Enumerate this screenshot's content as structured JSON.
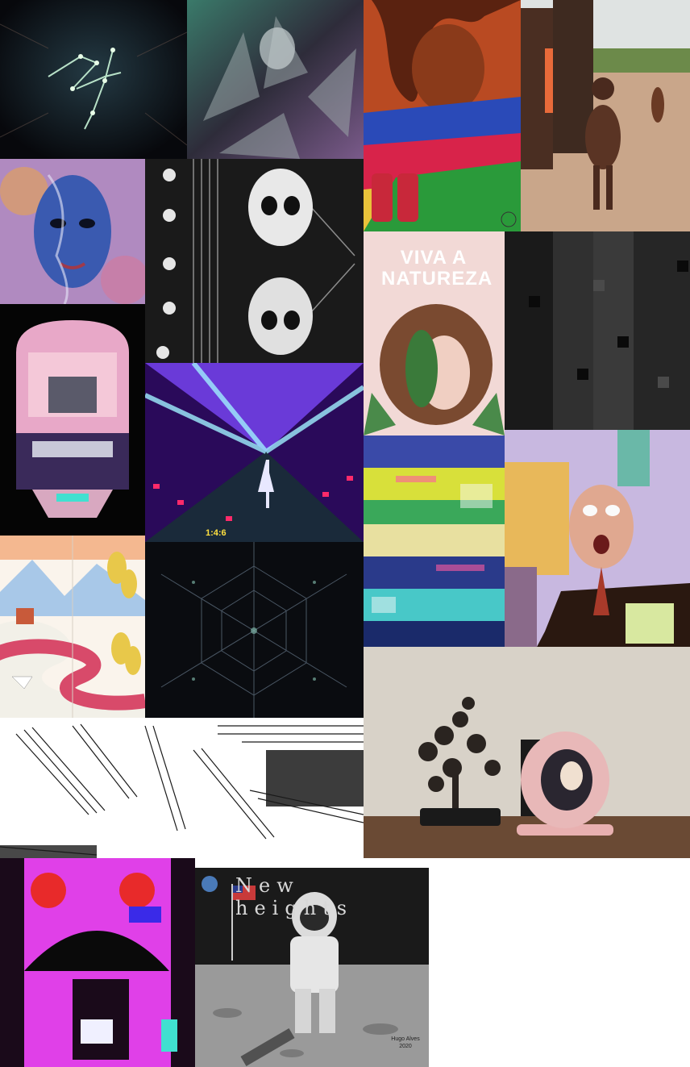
{
  "gallery": {
    "items": [
      {
        "id": "light-trails",
        "label": ""
      },
      {
        "id": "chrome-figure",
        "label": ""
      },
      {
        "id": "dreadlocks-painting",
        "label": ""
      },
      {
        "id": "children-photo",
        "label": ""
      },
      {
        "id": "psychedelic-face",
        "label": ""
      },
      {
        "id": "skull-mirror",
        "label": ""
      },
      {
        "id": "viva-natureza",
        "label": "VIVA A NATUREZA"
      },
      {
        "id": "dark-pixel-grid",
        "label": ""
      },
      {
        "id": "vaporwave-skull",
        "label": ""
      },
      {
        "id": "glitch-neon-tunnel",
        "label": "1:4:6"
      },
      {
        "id": "glitch-rainbow",
        "label": ""
      },
      {
        "id": "screaming-man-collage",
        "label": ""
      },
      {
        "id": "watercolor-landscape",
        "label": ""
      },
      {
        "id": "kaleidoscope-dark",
        "label": ""
      },
      {
        "id": "sketch-lines",
        "label": ""
      },
      {
        "id": "bonsai-frame-photo",
        "label": ""
      },
      {
        "id": "magenta-glitch",
        "label": ""
      },
      {
        "id": "astronaut-drawing",
        "label": "New heights"
      }
    ],
    "signature": "Hugo Alves 2020"
  }
}
